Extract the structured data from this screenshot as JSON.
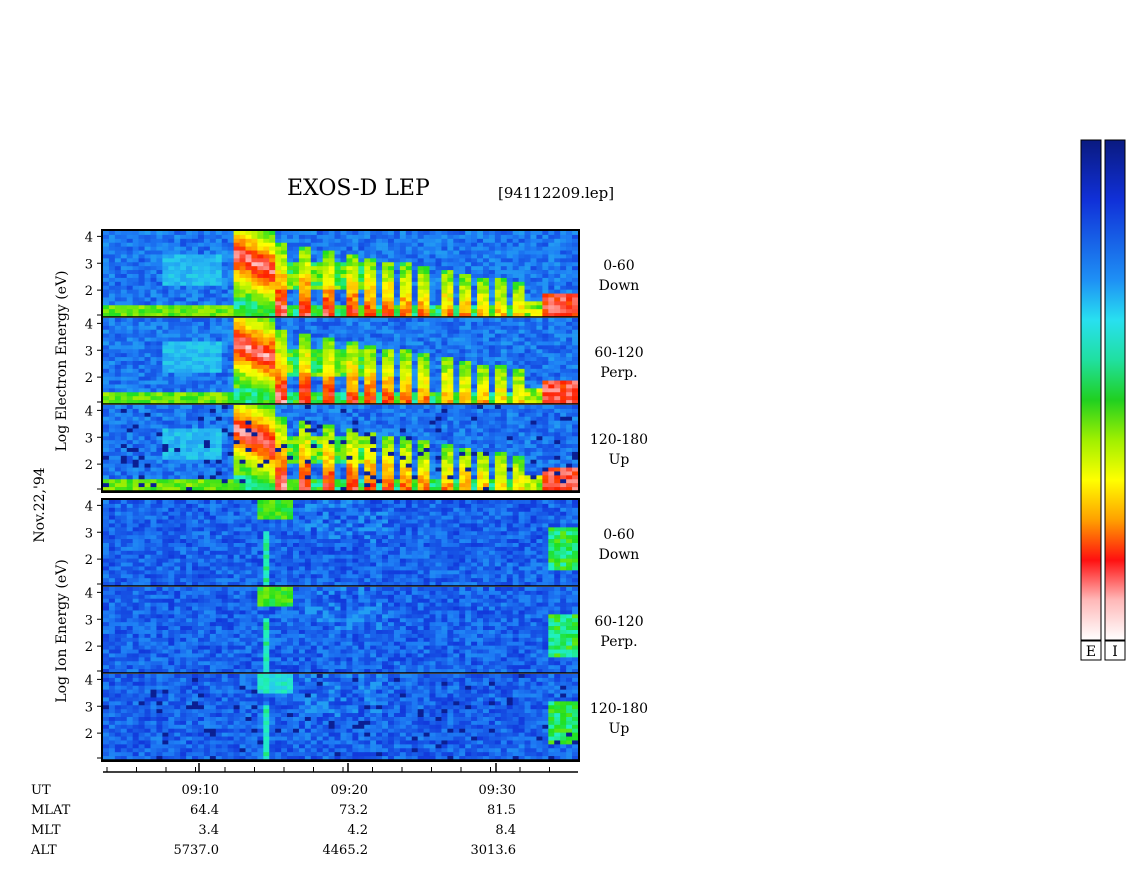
{
  "chart_data": {
    "type": "heatmap",
    "title": "EXOS-D LEP",
    "file_label": "[94112209.lep]",
    "date_label": "Nov.22,'94",
    "groups": [
      {
        "name": "electron",
        "ylabel": "Log  Electron  Energy  (eV)",
        "panels": [
          {
            "angle": "0-60",
            "direction": "Down"
          },
          {
            "angle": "60-120",
            "direction": "Perp."
          },
          {
            "angle": "120-180",
            "direction": "Up"
          }
        ]
      },
      {
        "name": "ion",
        "ylabel": "Log  Ion  Energy  (eV)",
        "panels": [
          {
            "angle": "0-60",
            "direction": "Down"
          },
          {
            "angle": "60-120",
            "direction": "Perp."
          },
          {
            "angle": "120-180",
            "direction": "Up"
          }
        ]
      }
    ],
    "y_ticks": [
      "2",
      "3",
      "4"
    ],
    "ylim": [
      1,
      4.2
    ],
    "x_ticks": [
      "09:10",
      "09:20",
      "09:30"
    ],
    "ephemeris": {
      "labels": [
        "UT",
        "MLAT",
        "MLT",
        "ALT"
      ],
      "rows": [
        {
          "label": "MLAT",
          "values": [
            "64.4",
            "73.2",
            "81.5"
          ]
        },
        {
          "label": "MLT",
          "values": [
            "3.4",
            "4.2",
            "8.4"
          ]
        },
        {
          "label": "ALT",
          "values": [
            "5737.0",
            "4465.2",
            "3013.6"
          ]
        }
      ]
    },
    "colorbars": [
      {
        "name": "E",
        "label": "E"
      },
      {
        "name": "I",
        "label": "I"
      }
    ],
    "colorscale": [
      "#0a1a80",
      "#1030d8",
      "#1e7ff5",
      "#28c8f0",
      "#20f0c0",
      "#20e020",
      "#a8f000",
      "#ffff00",
      "#ffa000",
      "#ff2000",
      "#ffb0b0",
      "#ffffff"
    ]
  }
}
